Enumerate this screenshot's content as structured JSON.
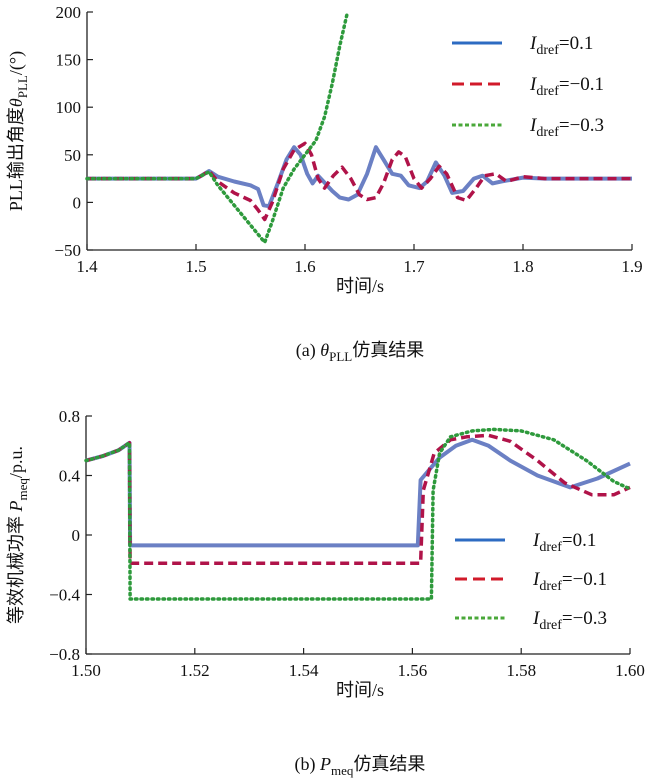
{
  "chart_data": [
    {
      "type": "line",
      "caption": {
        "prefix": "(a) ",
        "sym": "θ",
        "sub": "PLL",
        "suffix": "仿真结果"
      },
      "ylabel": {
        "main": "PLL输出角度",
        "sym": "θ",
        "sub": "PLL",
        "unit": "/(°)"
      },
      "xlabel": "时间/s",
      "xlim": [
        1.4,
        1.9
      ],
      "ylim": [
        -50,
        200
      ],
      "xticks": [
        "1.4",
        "1.5",
        "1.6",
        "1.7",
        "1.8",
        "1.9"
      ],
      "yticks": [
        "-50",
        "0",
        "50",
        "100",
        "150",
        "200"
      ],
      "legend_position": "top-right",
      "series": [
        {
          "name": "I",
          "sub": "dref",
          "value": "=0.1",
          "color": "#6b80c4",
          "legend_color": "#2d6bc2",
          "style": "solid",
          "x": [
            1.4,
            1.5,
            1.505,
            1.512,
            1.52,
            1.535,
            1.55,
            1.557,
            1.562,
            1.567,
            1.575,
            1.583,
            1.59,
            1.596,
            1.602,
            1.607,
            1.612,
            1.617,
            1.625,
            1.632,
            1.64,
            1.648,
            1.657,
            1.665,
            1.672,
            1.68,
            1.688,
            1.695,
            1.705,
            1.712,
            1.72,
            1.728,
            1.735,
            1.745,
            1.755,
            1.763,
            1.772,
            1.78,
            1.8,
            1.82,
            1.9
          ],
          "y": [
            25,
            25,
            28,
            33,
            27,
            22,
            18,
            14,
            -3,
            -4,
            20,
            45,
            58,
            50,
            30,
            20,
            28,
            22,
            12,
            5,
            3,
            8,
            30,
            58,
            45,
            30,
            28,
            18,
            15,
            22,
            42,
            28,
            10,
            12,
            25,
            28,
            20,
            22,
            26,
            25,
            25
          ]
        },
        {
          "name": "I",
          "sub": "dref",
          "value": "=−0.1",
          "color": "#b01349",
          "legend_color": "#d11a2a",
          "style": "dashed",
          "x": [
            1.4,
            1.5,
            1.505,
            1.512,
            1.52,
            1.535,
            1.55,
            1.557,
            1.563,
            1.57,
            1.58,
            1.59,
            1.6,
            1.606,
            1.612,
            1.618,
            1.626,
            1.634,
            1.642,
            1.65,
            1.657,
            1.665,
            1.672,
            1.68,
            1.686,
            1.692,
            1.7,
            1.707,
            1.715,
            1.723,
            1.73,
            1.74,
            1.748,
            1.757,
            1.765,
            1.775,
            1.785,
            1.8,
            1.82,
            1.9
          ],
          "y": [
            25,
            25,
            28,
            33,
            22,
            10,
            2,
            -8,
            -18,
            0,
            35,
            55,
            62,
            50,
            25,
            15,
            28,
            37,
            25,
            8,
            3,
            5,
            20,
            45,
            53,
            48,
            25,
            15,
            25,
            38,
            30,
            5,
            2,
            15,
            28,
            30,
            22,
            27,
            25,
            25
          ]
        },
        {
          "name": "I",
          "sub": "dref",
          "value": "=−0.3",
          "color": "#2e9a3c",
          "legend_color": "#4aa83a",
          "style": "dotted",
          "x": [
            1.4,
            1.5,
            1.505,
            1.512,
            1.52,
            1.54,
            1.563,
            1.57,
            1.58,
            1.59,
            1.6,
            1.61,
            1.618,
            1.625,
            1.632,
            1.639
          ],
          "y": [
            25,
            25,
            28,
            32,
            18,
            -10,
            -42,
            -20,
            15,
            35,
            50,
            65,
            90,
            125,
            165,
            200
          ]
        }
      ]
    },
    {
      "type": "line",
      "caption": {
        "prefix": "(b) ",
        "sym": "P",
        "sub": "meq",
        "suffix": "仿真结果"
      },
      "ylabel": {
        "main": "等效机械功率 ",
        "sym": "P",
        "sub": "meq",
        "unit": "/p.u."
      },
      "xlabel": "时间/s",
      "xlim": [
        1.5,
        1.6
      ],
      "ylim": [
        -0.8,
        0.8
      ],
      "xticks": [
        "1.50",
        "1.52",
        "1.54",
        "1.56",
        "1.58",
        "1.60"
      ],
      "yticks": [
        "-0.8",
        "-0.4",
        "0",
        "0.4",
        "0.8"
      ],
      "legend_position": "bottom-right",
      "series": [
        {
          "name": "I",
          "sub": "dref",
          "value": "=0.1",
          "color": "#6b80c4",
          "legend_color": "#2d6bc2",
          "style": "solid",
          "x": [
            1.5,
            1.503,
            1.506,
            1.508,
            1.5081,
            1.561,
            1.5615,
            1.565,
            1.568,
            1.571,
            1.574,
            1.578,
            1.583,
            1.589,
            1.594,
            1.6
          ],
          "y": [
            0.5,
            0.53,
            0.57,
            0.62,
            -0.07,
            -0.07,
            0.37,
            0.52,
            0.6,
            0.64,
            0.6,
            0.5,
            0.4,
            0.32,
            0.38,
            0.48
          ]
        },
        {
          "name": "I",
          "sub": "dref",
          "value": "=−0.1",
          "color": "#b01349",
          "legend_color": "#d11a2a",
          "style": "dashed",
          "x": [
            1.5,
            1.503,
            1.506,
            1.508,
            1.5081,
            1.5615,
            1.562,
            1.564,
            1.567,
            1.57,
            1.574,
            1.578,
            1.583,
            1.588,
            1.593,
            1.597,
            1.6
          ],
          "y": [
            0.5,
            0.53,
            0.57,
            0.62,
            -0.19,
            -0.19,
            0.3,
            0.55,
            0.64,
            0.66,
            0.67,
            0.63,
            0.5,
            0.35,
            0.27,
            0.27,
            0.32
          ]
        },
        {
          "name": "I",
          "sub": "dref",
          "value": "=−0.3",
          "color": "#2e9a3c",
          "legend_color": "#4aa83a",
          "style": "dotted",
          "x": [
            1.5,
            1.503,
            1.506,
            1.508,
            1.5081,
            1.5635,
            1.5638,
            1.565,
            1.567,
            1.571,
            1.575,
            1.58,
            1.586,
            1.592,
            1.597,
            1.6
          ],
          "y": [
            0.5,
            0.53,
            0.57,
            0.62,
            -0.43,
            -0.43,
            0.3,
            0.55,
            0.66,
            0.7,
            0.71,
            0.7,
            0.64,
            0.5,
            0.36,
            0.31
          ]
        }
      ]
    }
  ]
}
